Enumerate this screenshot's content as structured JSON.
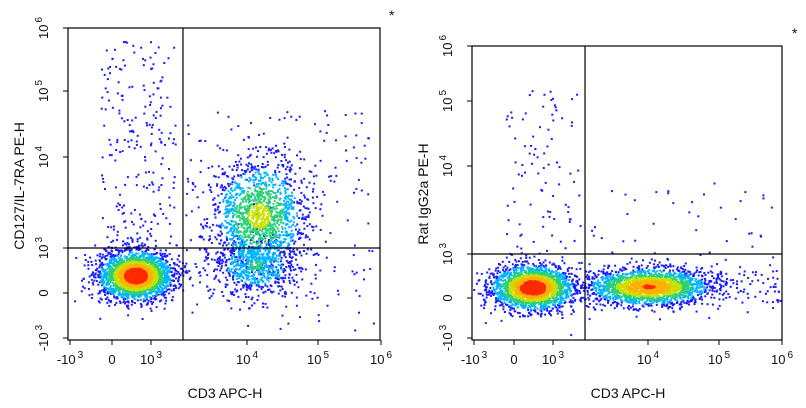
{
  "chart_data": [
    {
      "type": "scatter",
      "subtype": "flow-cytometry-density-dot-plot",
      "xlabel": "CD3 APC-H",
      "ylabel": "CD127/IL-7RA PE-H",
      "corner_mark": "*",
      "x_ticks": [
        {
          "base": "-10",
          "exp": "3",
          "value": -1000
        },
        {
          "base": "0",
          "exp": "",
          "value": 0
        },
        {
          "base": "10",
          "exp": "3",
          "value": 1000
        },
        {
          "base": "10",
          "exp": "4",
          "value": 10000
        },
        {
          "base": "10",
          "exp": "5",
          "value": 100000
        },
        {
          "base": "10",
          "exp": "6",
          "value": 1000000
        }
      ],
      "y_ticks": [
        {
          "base": "-10",
          "exp": "3",
          "value": -1000
        },
        {
          "base": "0",
          "exp": "",
          "value": 0
        },
        {
          "base": "10",
          "exp": "3",
          "value": 1000
        },
        {
          "base": "10",
          "exp": "4",
          "value": 10000
        },
        {
          "base": "10",
          "exp": "5",
          "value": 100000
        },
        {
          "base": "10",
          "exp": "6",
          "value": 1000000
        }
      ],
      "gate": {
        "x": 2000,
        "y": 900
      },
      "populations": [
        {
          "name": "CD3-negative",
          "center": [
            400,
            250
          ],
          "relative_density": "high"
        },
        {
          "name": "CD3-positive CD127-positive",
          "center": [
            15000,
            2500
          ],
          "relative_density": "medium"
        },
        {
          "name": "CD3-positive low",
          "center": [
            15000,
            200
          ],
          "relative_density": "low"
        }
      ]
    },
    {
      "type": "scatter",
      "subtype": "flow-cytometry-density-dot-plot",
      "xlabel": "CD3 APC-H",
      "ylabel": "Rat IgG2a PE-H",
      "corner_mark": "*",
      "x_ticks": [
        {
          "base": "-10",
          "exp": "3",
          "value": -1000
        },
        {
          "base": "0",
          "exp": "",
          "value": 0
        },
        {
          "base": "10",
          "exp": "3",
          "value": 1000
        },
        {
          "base": "10",
          "exp": "4",
          "value": 10000
        },
        {
          "base": "10",
          "exp": "5",
          "value": 100000
        },
        {
          "base": "10",
          "exp": "6",
          "value": 1000000
        }
      ],
      "y_ticks": [
        {
          "base": "-10",
          "exp": "3",
          "value": -1000
        },
        {
          "base": "0",
          "exp": "",
          "value": 0
        },
        {
          "base": "10",
          "exp": "3",
          "value": 1000
        },
        {
          "base": "10",
          "exp": "4",
          "value": 10000
        },
        {
          "base": "10",
          "exp": "5",
          "value": 100000
        },
        {
          "base": "10",
          "exp": "6",
          "value": 1000000
        }
      ],
      "gate": {
        "x": 2000,
        "y": 900
      },
      "populations": [
        {
          "name": "CD3-negative",
          "center": [
            400,
            100
          ],
          "relative_density": "high"
        },
        {
          "name": "CD3-positive",
          "center": [
            15000,
            60
          ],
          "relative_density": "high"
        }
      ]
    }
  ],
  "colormap": [
    "#1a1aff",
    "#00b4ff",
    "#2ad07a",
    "#c8e000",
    "#ffb000",
    "#ff2a00"
  ]
}
